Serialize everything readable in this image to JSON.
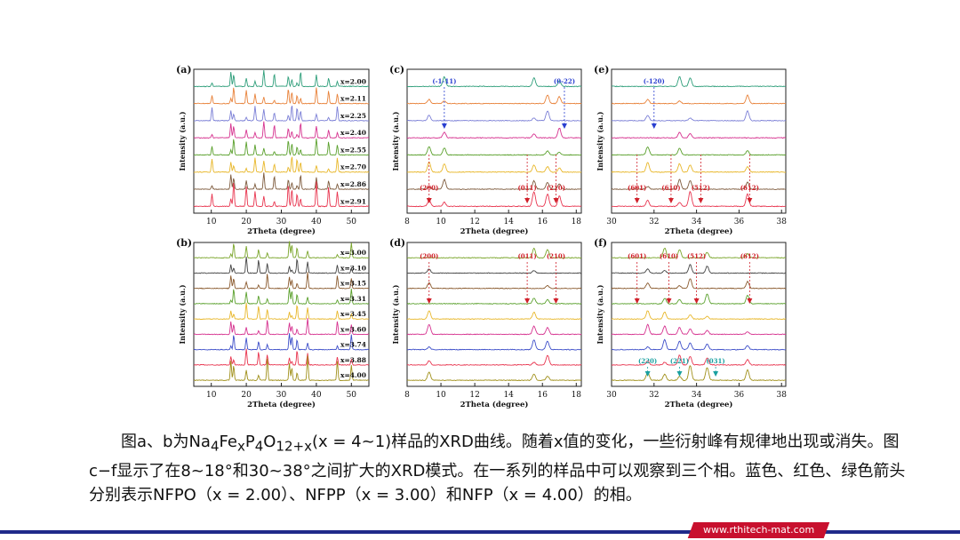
{
  "chart_data": [
    {
      "type": "line",
      "panel": "(a)",
      "xlabel": "2Theta (degree)",
      "ylabel": "Intensity (a.u.)",
      "xlim": [
        5,
        55
      ],
      "xticks": [
        10,
        20,
        30,
        40,
        50
      ],
      "series": [
        {
          "name": "x=2.00",
          "color": "#2e9e7a"
        },
        {
          "name": "x=2.11",
          "color": "#e8823a"
        },
        {
          "name": "x=2.25",
          "color": "#7b7fd6"
        },
        {
          "name": "x=2.40",
          "color": "#d6328f"
        },
        {
          "name": "x=2.55",
          "color": "#5aa02c"
        },
        {
          "name": "x=2.70",
          "color": "#e8b72a"
        },
        {
          "name": "x=2.86",
          "color": "#7d5a3c"
        },
        {
          "name": "x=2.91",
          "color": "#e8354f"
        }
      ],
      "peaks": [
        10.2,
        15.6,
        16.4,
        20.0,
        22.5,
        25.0,
        28.0,
        32.0,
        33.0,
        34.5,
        35.5,
        40.0,
        43.5,
        46.0
      ]
    },
    {
      "type": "line",
      "panel": "(b)",
      "xlabel": "2Theta (degree)",
      "ylabel": "Intensity (a.u.)",
      "xlim": [
        5,
        55
      ],
      "xticks": [
        10,
        20,
        30,
        40,
        50
      ],
      "series": [
        {
          "name": "x=3.00",
          "color": "#7aa52a"
        },
        {
          "name": "x=3.10",
          "color": "#444444"
        },
        {
          "name": "x=3.15",
          "color": "#8a5a2e"
        },
        {
          "name": "x=3.31",
          "color": "#5aa02c"
        },
        {
          "name": "x=3.45",
          "color": "#e8b72a"
        },
        {
          "name": "x=3.60",
          "color": "#d6328f"
        },
        {
          "name": "x=3.74",
          "color": "#3e4fc9"
        },
        {
          "name": "x=3.88",
          "color": "#e8354f"
        },
        {
          "name": "x=4.00",
          "color": "#a0901a"
        }
      ],
      "peaks": [
        15.6,
        16.4,
        20.0,
        23.5,
        26.0,
        32.3,
        33.0,
        34.5,
        37.5,
        46.0,
        50.0
      ]
    },
    {
      "type": "line",
      "panel": "(c)",
      "xlabel": "2Theta (degree)",
      "ylabel": "Intensity (a.u.)",
      "xlim": [
        8,
        18.3
      ],
      "xticks": [
        8,
        10,
        12,
        14,
        16,
        18
      ],
      "series_colors": [
        "#2e9e7a",
        "#e8823a",
        "#7b7fd6",
        "#d6328f",
        "#5aa02c",
        "#e8b72a",
        "#7d5a3c",
        "#e8354f"
      ],
      "peaks": [
        9.3,
        10.2,
        15.5,
        16.3,
        17.0
      ],
      "labels": [
        {
          "text": "(-1-11)",
          "x": 10.2,
          "color": "#2a3fd0"
        },
        {
          "text": "(0-22)",
          "x": 17.3,
          "color": "#2a3fd0"
        },
        {
          "text": "(200)",
          "x": 9.3,
          "color": "#d0202a"
        },
        {
          "text": "(011)",
          "x": 15.1,
          "color": "#d0202a"
        },
        {
          "text": "(210)",
          "x": 16.8,
          "color": "#d0202a"
        }
      ]
    },
    {
      "type": "line",
      "panel": "(d)",
      "xlabel": "2Theta (degree)",
      "ylabel": "Intensity (a.u.)",
      "xlim": [
        8,
        18.3
      ],
      "xticks": [
        8,
        10,
        12,
        14,
        16,
        18
      ],
      "series_colors": [
        "#7aa52a",
        "#444444",
        "#8a5a2e",
        "#5aa02c",
        "#e8b72a",
        "#d6328f",
        "#3e4fc9",
        "#e8354f",
        "#a0901a"
      ],
      "peaks": [
        9.3,
        15.5,
        16.3
      ],
      "labels": [
        {
          "text": "(200)",
          "x": 9.3,
          "color": "#d0202a"
        },
        {
          "text": "(011)",
          "x": 15.1,
          "color": "#d0202a"
        },
        {
          "text": "(210)",
          "x": 16.8,
          "color": "#d0202a"
        }
      ]
    },
    {
      "type": "line",
      "panel": "(e)",
      "xlabel": "2Theta (degree)",
      "ylabel": "Intensity (a.u.)",
      "xlim": [
        30,
        38.2
      ],
      "xticks": [
        30,
        32,
        34,
        36,
        38
      ],
      "series_colors": [
        "#2e9e7a",
        "#e8823a",
        "#7b7fd6",
        "#d6328f",
        "#5aa02c",
        "#e8b72a",
        "#7d5a3c",
        "#e8354f"
      ],
      "peaks": [
        31.7,
        33.2,
        33.7,
        36.4
      ],
      "labels": [
        {
          "text": "(-120)",
          "x": 32.0,
          "color": "#2a3fd0"
        },
        {
          "text": "(601)",
          "x": 31.2,
          "color": "#d0202a"
        },
        {
          "text": "(610)",
          "x": 32.8,
          "color": "#d0202a"
        },
        {
          "text": "(512)",
          "x": 34.2,
          "color": "#d0202a"
        },
        {
          "text": "(612)",
          "x": 36.5,
          "color": "#d0202a"
        }
      ]
    },
    {
      "type": "line",
      "panel": "(f)",
      "xlabel": "2Theta (degree)",
      "ylabel": "Intensity (a.u.)",
      "xlim": [
        30,
        38.2
      ],
      "xticks": [
        30,
        32,
        34,
        36,
        38
      ],
      "series_colors": [
        "#7aa52a",
        "#444444",
        "#8a5a2e",
        "#5aa02c",
        "#e8b72a",
        "#d6328f",
        "#3e4fc9",
        "#e8354f",
        "#a0901a"
      ],
      "peaks": [
        31.7,
        32.5,
        33.2,
        33.7,
        34.5,
        36.4
      ],
      "labels": [
        {
          "text": "(601)",
          "x": 31.2,
          "color": "#d0202a"
        },
        {
          "text": "(610)",
          "x": 32.7,
          "color": "#d0202a"
        },
        {
          "text": "(512)",
          "x": 34.0,
          "color": "#d0202a"
        },
        {
          "text": "(612)",
          "x": 36.5,
          "color": "#d0202a"
        },
        {
          "text": "(220)",
          "x": 31.7,
          "color": "#1aa0a0"
        },
        {
          "text": "(221)",
          "x": 33.2,
          "color": "#1aa0a0"
        },
        {
          "text": "(031)",
          "x": 34.9,
          "color": "#1aa0a0"
        }
      ]
    }
  ],
  "caption": {
    "t1": "图a、b为Na",
    "s1": "4",
    "t2": "Fe",
    "s2": "x",
    "t3": "P",
    "s3": "4",
    "t4": "O",
    "s4": "12+x",
    "t5": "(x = 4~1)样品的XRD曲线。随着x值的变化，一些衍射峰有规律地出现或消失。图c−f显示了在8~18°和30~38°之间扩大的XRD模式。在一系列的样品中可以观察到三个相。蓝色、红色、绿色箭头分别表示NFPO（x = 2.00）、NFPP（x = 3.00）和NFP（x = 4.00）的相。"
  },
  "footer": {
    "url": "www.rthitech-mat.com"
  }
}
